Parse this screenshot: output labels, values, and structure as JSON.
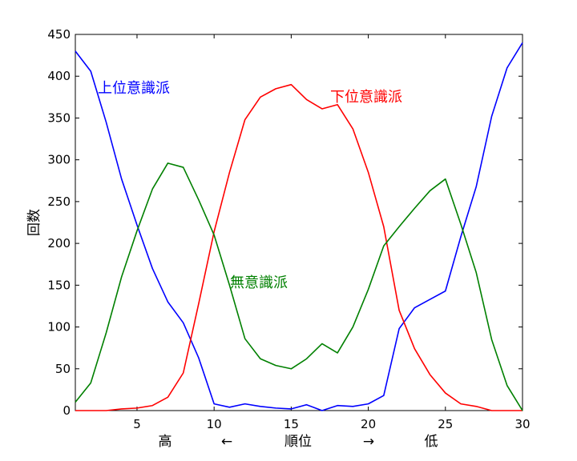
{
  "chart_data": {
    "type": "line",
    "title": "",
    "ylabel": "回数",
    "xlabel": {
      "high": "高",
      "left_arrow": "←",
      "rank": "順位",
      "right_arrow": "→",
      "low": "低"
    },
    "xlim": [
      1,
      30
    ],
    "ylim": [
      0,
      450
    ],
    "x_ticks": [
      5,
      10,
      15,
      20,
      25,
      30
    ],
    "y_ticks": [
      0,
      50,
      100,
      150,
      200,
      250,
      300,
      350,
      400,
      450
    ],
    "grid": false,
    "x": [
      1,
      2,
      3,
      4,
      5,
      6,
      7,
      8,
      9,
      10,
      11,
      12,
      13,
      14,
      15,
      16,
      17,
      18,
      19,
      20,
      21,
      22,
      23,
      24,
      25,
      26,
      27,
      28,
      29,
      30
    ],
    "series": [
      {
        "name": "上位意識派",
        "color": "#0000ff",
        "values": [
          430,
          406,
          345,
          277,
          222,
          170,
          130,
          105,
          63,
          8,
          4,
          8,
          5,
          3,
          2,
          7,
          0,
          6,
          5,
          8,
          18,
          98,
          123,
          133,
          143,
          208,
          268,
          352,
          410,
          440
        ]
      },
      {
        "name": "下位意識派",
        "color": "#ff0000",
        "values": [
          0,
          0,
          0,
          2,
          3,
          6,
          16,
          45,
          128,
          214,
          285,
          348,
          375,
          385,
          390,
          372,
          361,
          366,
          337,
          285,
          220,
          120,
          74,
          43,
          21,
          8,
          5,
          0,
          0,
          0
        ]
      },
      {
        "name": "無意識派",
        "color": "#008000",
        "values": [
          10,
          33,
          93,
          160,
          215,
          265,
          296,
          291,
          252,
          210,
          150,
          86,
          62,
          54,
          50,
          62,
          80,
          69,
          100,
          145,
          197,
          220,
          242,
          263,
          277,
          223,
          165,
          85,
          30,
          0
        ]
      }
    ]
  }
}
